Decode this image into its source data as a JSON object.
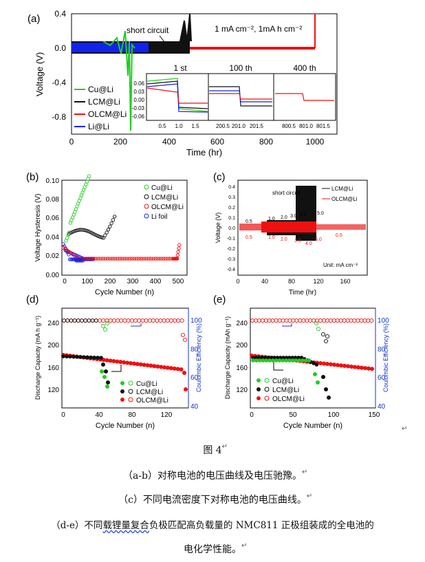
{
  "panels": {
    "a": {
      "label": "(a)",
      "annotation_short": "short circuit",
      "annotation_cond": "1 mA cm⁻², 1mA h cm⁻²",
      "xlabel": "Time (hr)",
      "ylabel": "Voltage (V)",
      "xticks": [
        "0",
        "200",
        "400",
        "600",
        "800",
        "1000"
      ],
      "yticks": [
        "0.4",
        "0.0",
        "-0.4",
        "-0.8"
      ],
      "legend": [
        "Cu@Li",
        "LCM@Li",
        "OLCM@Li",
        "Li@Li"
      ],
      "inset": {
        "headers": [
          "1 st",
          "100 th",
          "400 th"
        ],
        "yticks": [
          "0.06",
          "0.03",
          "0.00",
          "-0.03",
          "-0.06"
        ],
        "xticks": [
          "0.5",
          "1.0",
          "1.5",
          "200.5",
          "201.0",
          "201.5",
          "800.5",
          "801.0",
          "801.5"
        ]
      }
    },
    "b": {
      "label": "(b)",
      "xlabel": "Cycle Number (n)",
      "ylabel": "Voltage Hysteresis (V)",
      "xticks": [
        "0",
        "100",
        "200",
        "300",
        "400",
        "500"
      ],
      "yticks": [
        "0.00",
        "0.02",
        "0.04",
        "0.06",
        "0.08",
        "0.10"
      ],
      "legend": [
        "Cu@Li",
        "LCM@Li",
        "OLCM@Li",
        "Li foil"
      ]
    },
    "c": {
      "label": "(c)",
      "xlabel": "Time (hr)",
      "ylabel": "Voltage (V)",
      "xticks": [
        "0",
        "40",
        "80",
        "120",
        "160"
      ],
      "yticks": [
        "0.4",
        "0.3",
        "0.2",
        "0.1",
        "0.0",
        "-0.1",
        "-0.2",
        "-0.3",
        "-0.4"
      ],
      "legend": [
        "LCM@Li",
        "OLCM@Li"
      ],
      "annotation_short": "short circuit",
      "unit": "Unit: mA cm⁻²",
      "rates_top": [
        "0.5",
        "1.0",
        "2.0",
        "3.0",
        "4.0",
        "5.0"
      ],
      "rates_bottom": [
        "0.5",
        "1.0",
        "2.0",
        "3.0",
        "4.0",
        "5.0",
        "0.5"
      ]
    },
    "d": {
      "label": "(d)",
      "xlabel": "Cycle Number (n)",
      "ylabel_left": "Discharge Capacity (mA h g⁻¹)",
      "ylabel_right": "Coulombic Efficiency (%)",
      "xticks": [
        "0",
        "40",
        "80",
        "120"
      ],
      "yticks_left": [
        "120",
        "160",
        "200",
        "240"
      ],
      "yticks_right": [
        "40",
        "60",
        "80",
        "100"
      ],
      "legend": [
        "Cu@Li",
        "LCM@Li",
        "OLCM@Li"
      ]
    },
    "e": {
      "label": "(e)",
      "xlabel": "Cycle Number (n)",
      "ylabel_left": "Discharge Capacity (mAh g⁻¹)",
      "ylabel_right": "Coulombic Efficiency (%)",
      "xticks": [
        "0",
        "50",
        "100",
        "150"
      ],
      "yticks_left": [
        "120",
        "160",
        "200",
        "240"
      ],
      "yticks_right": [
        "40",
        "60",
        "80",
        "100"
      ],
      "legend": [
        "Cu@Li",
        "LCM@Li",
        "OLCM@Li"
      ]
    }
  },
  "captions": {
    "fig": "图 4",
    "line1": "（a-b）对称电池的电压曲线及电压驰豫。",
    "line2": "（c）不同电流密度下对称电池的电压曲线。",
    "line3_pre": "（d-e）不同",
    "line3_ul": "载锂量复合",
    "line3_post": "负极匹配高负载量的 NMC811 正极组装成的全电池的",
    "line4": "电化学性能。"
  },
  "colors": {
    "cu": "#22cc22",
    "lcm": "#111111",
    "olcm": "#ee1111",
    "li": "#1122ee",
    "ce_axis": "#1133cc"
  }
}
